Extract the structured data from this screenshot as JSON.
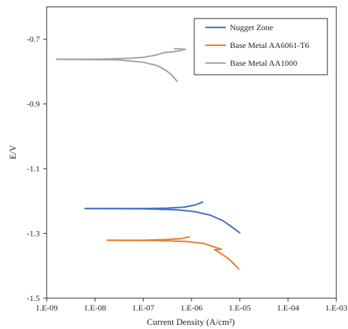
{
  "chart_data": {
    "type": "line",
    "title": "",
    "xlabel": "Current Density (A/cm²)",
    "ylabel": "E/V",
    "x_scale": "log",
    "xlim": [
      1e-09,
      0.001
    ],
    "ylim": [
      -1.5,
      -0.6
    ],
    "x_tick_labels": [
      "1.E-09",
      "1.E-08",
      "1.E-07",
      "1.E-06",
      "1.E-05",
      "1.E-04",
      "1.E-03"
    ],
    "y_tick_labels": [
      "-0.7",
      "-0.9",
      "-1.1",
      "-1.3",
      "-1.5"
    ],
    "y_tick_values": [
      -0.7,
      -0.9,
      -1.1,
      -1.3,
      -1.5
    ],
    "grid": false,
    "legend_position": "top-right",
    "series": [
      {
        "name": "Nugget Zone",
        "color": "#4472C4",
        "branches": [
          [
            [
              6.3e-09,
              -1.223
            ],
            [
              2e-08,
              -1.223
            ],
            [
              1e-07,
              -1.223
            ],
            [
              3e-07,
              -1.222
            ],
            [
              7e-07,
              -1.219
            ],
            [
              1.2e-06,
              -1.212
            ],
            [
              1.7e-06,
              -1.203
            ]
          ],
          [
            [
              6.3e-09,
              -1.223
            ],
            [
              1e-07,
              -1.224
            ],
            [
              5e-07,
              -1.227
            ],
            [
              1.2e-06,
              -1.233
            ],
            [
              2.5e-06,
              -1.244
            ],
            [
              4.5e-06,
              -1.261
            ],
            [
              7e-06,
              -1.281
            ],
            [
              1e-05,
              -1.298
            ]
          ]
        ]
      },
      {
        "name": "Base Metal AA6061-T6",
        "color": "#ED7D31",
        "branches": [
          [
            [
              1.8e-08,
              -1.321
            ],
            [
              1e-07,
              -1.321
            ],
            [
              3e-07,
              -1.319
            ],
            [
              6e-07,
              -1.316
            ],
            [
              9e-07,
              -1.311
            ]
          ],
          [
            [
              1.8e-08,
              -1.321
            ],
            [
              2e-07,
              -1.322
            ],
            [
              8e-07,
              -1.325
            ],
            [
              1.8e-06,
              -1.331
            ],
            [
              3e-06,
              -1.342
            ],
            [
              4.2e-06,
              -1.349
            ],
            [
              3e-06,
              -1.35
            ],
            [
              3.5e-06,
              -1.356
            ],
            [
              5.5e-06,
              -1.375
            ],
            [
              7.5e-06,
              -1.393
            ],
            [
              9.5e-06,
              -1.41
            ]
          ]
        ]
      },
      {
        "name": "Base Metal AA1000",
        "color": "#A5A5A5",
        "branches": [
          [
            [
              1.6e-09,
              -0.762
            ],
            [
              1e-08,
              -0.762
            ],
            [
              5e-08,
              -0.759
            ],
            [
              1e-07,
              -0.756
            ],
            [
              1.8e-07,
              -0.749
            ],
            [
              2.8e-07,
              -0.741
            ],
            [
              4e-07,
              -0.739
            ],
            [
              6e-07,
              -0.735
            ],
            [
              7.5e-07,
              -0.731
            ],
            [
              4.5e-07,
              -0.729
            ]
          ],
          [
            [
              1.6e-09,
              -0.762
            ],
            [
              3e-08,
              -0.764
            ],
            [
              1e-07,
              -0.771
            ],
            [
              2e-07,
              -0.782
            ],
            [
              3e-07,
              -0.797
            ],
            [
              4e-07,
              -0.812
            ],
            [
              5e-07,
              -0.83
            ]
          ]
        ]
      }
    ]
  }
}
